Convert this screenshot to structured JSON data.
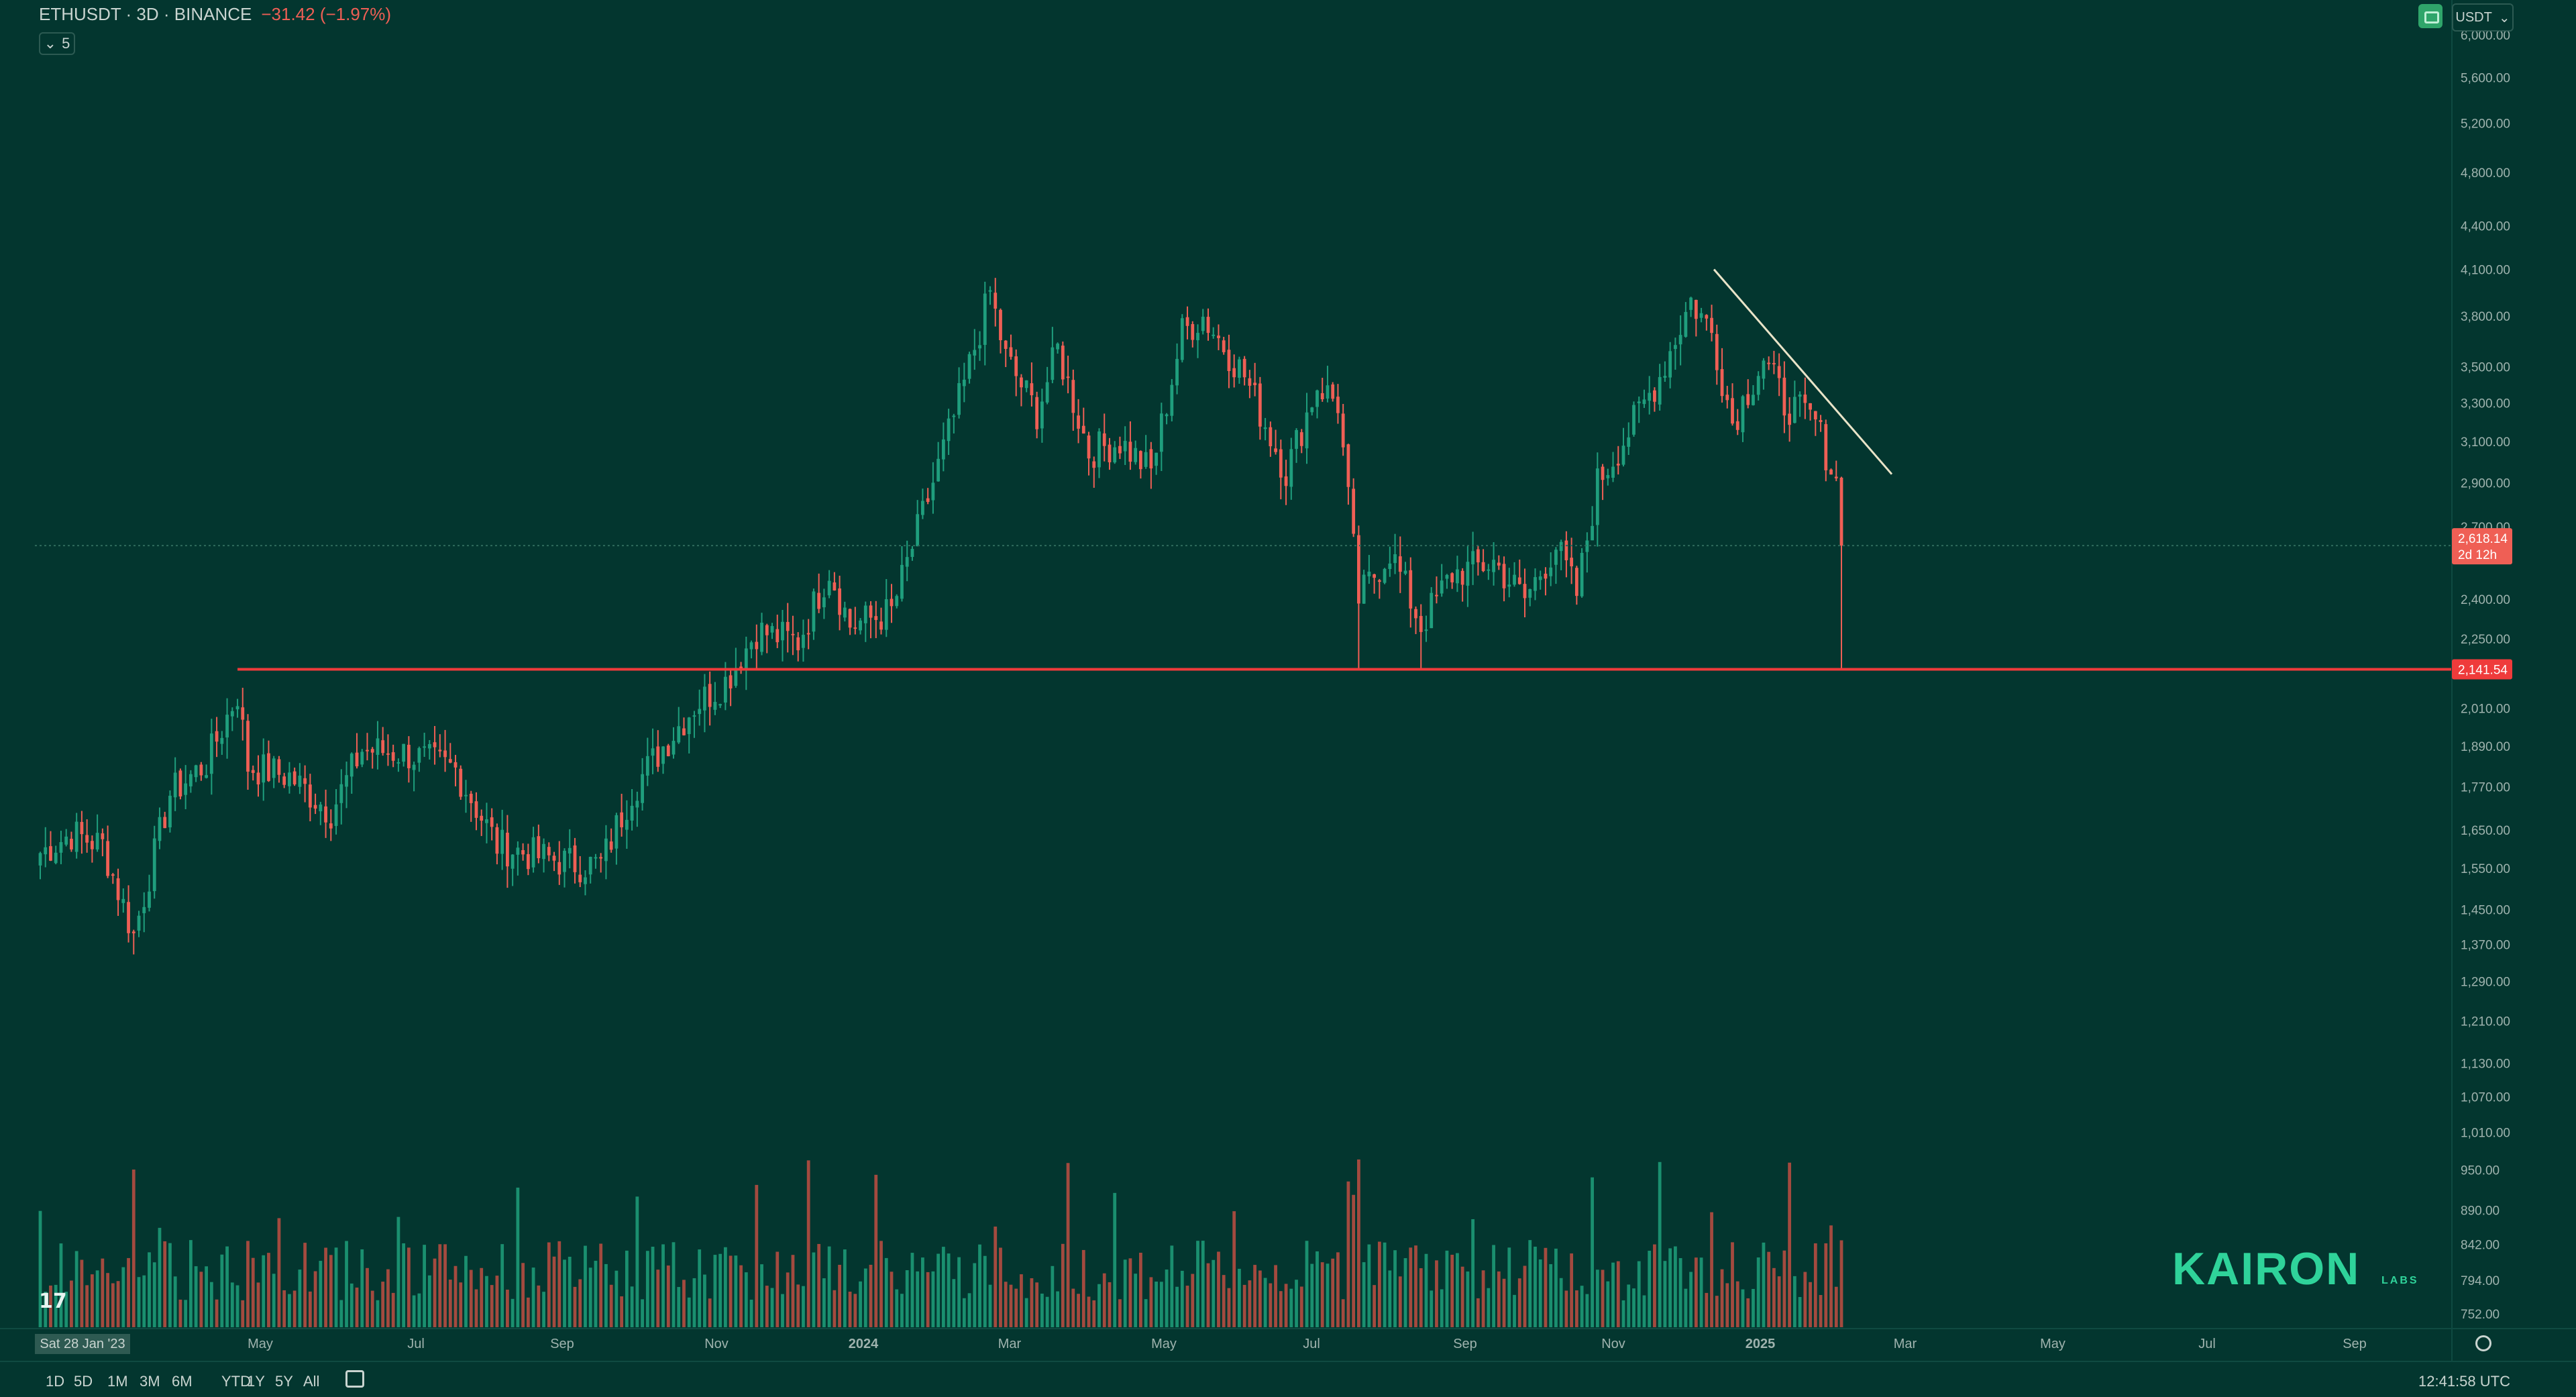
{
  "header": {
    "symbol_line": "ETHUSDT · 3D · BINANCE",
    "change": "−31.42 (−1.97%)",
    "indicator_count": "5",
    "currency": "USDT"
  },
  "timeframes": [
    "1D",
    "5D",
    "1M",
    "3M",
    "6M",
    "YTD",
    "1Y",
    "5Y",
    "All"
  ],
  "clock": "12:41:58 UTC",
  "logo_text": "KAIRON",
  "logo_sub": "LABS",
  "tv_logo": "17",
  "colors": {
    "bg": "#03362f",
    "up": "#1f9e7d",
    "down": "#ef5f55",
    "support": "#ef3b3b",
    "trend": "#e9e4c8"
  },
  "chart_data": {
    "type": "candlestick",
    "symbol": "ETHUSDT",
    "interval": "3D",
    "exchange": "BINANCE",
    "x_start": "Sat 28 Jan '23",
    "x_ticks": [
      "May",
      "Jul",
      "Sep",
      "Nov",
      "2024",
      "Mar",
      "May",
      "Jul",
      "Sep",
      "Nov",
      "2025",
      "Mar",
      "May",
      "Jul",
      "Sep"
    ],
    "y_ticks": [
      6000,
      5600,
      5200,
      4800,
      4400,
      4100,
      3800,
      3500,
      3300,
      3100,
      2900,
      2700,
      2400,
      2250,
      2010,
      1890,
      1770,
      1650,
      1550,
      1450,
      1370,
      1290,
      1210,
      1130,
      1070,
      1010,
      950,
      890,
      842,
      794,
      752
    ],
    "last_price": "2,618.14",
    "countdown": "2d 12h",
    "support_level": "2,141.54",
    "anchors": [
      {
        "i": 0,
        "p": 1590
      },
      {
        "i": 6,
        "p": 1640
      },
      {
        "i": 12,
        "p": 1610
      },
      {
        "i": 18,
        "p": 1390
      },
      {
        "i": 25,
        "p": 1750
      },
      {
        "i": 32,
        "p": 1840
      },
      {
        "i": 38,
        "p": 2060
      },
      {
        "i": 40,
        "p": 1830
      },
      {
        "i": 48,
        "p": 1800
      },
      {
        "i": 56,
        "p": 1700
      },
      {
        "i": 62,
        "p": 1880
      },
      {
        "i": 70,
        "p": 1870
      },
      {
        "i": 80,
        "p": 1820
      },
      {
        "i": 88,
        "p": 1610
      },
      {
        "i": 96,
        "p": 1580
      },
      {
        "i": 104,
        "p": 1560
      },
      {
        "i": 108,
        "p": 1560
      },
      {
        "i": 114,
        "p": 1760
      },
      {
        "i": 120,
        "p": 1890
      },
      {
        "i": 126,
        "p": 2020
      },
      {
        "i": 132,
        "p": 2100
      },
      {
        "i": 138,
        "p": 2280
      },
      {
        "i": 146,
        "p": 2240
      },
      {
        "i": 152,
        "p": 2520
      },
      {
        "i": 156,
        "p": 2300
      },
      {
        "i": 164,
        "p": 2350
      },
      {
        "i": 172,
        "p": 2900
      },
      {
        "i": 178,
        "p": 3400
      },
      {
        "i": 183,
        "p": 3950
      },
      {
        "i": 186,
        "p": 3550
      },
      {
        "i": 192,
        "p": 3250
      },
      {
        "i": 196,
        "p": 3600
      },
      {
        "i": 202,
        "p": 3050
      },
      {
        "i": 208,
        "p": 3100
      },
      {
        "i": 214,
        "p": 2950
      },
      {
        "i": 220,
        "p": 3700
      },
      {
        "i": 224,
        "p": 3800
      },
      {
        "i": 232,
        "p": 3450
      },
      {
        "i": 240,
        "p": 2950
      },
      {
        "i": 246,
        "p": 3400
      },
      {
        "i": 250,
        "p": 3300
      },
      {
        "i": 254,
        "p": 2400
      },
      {
        "i": 260,
        "p": 2600
      },
      {
        "i": 266,
        "p": 2300
      },
      {
        "i": 272,
        "p": 2500
      },
      {
        "i": 280,
        "p": 2550
      },
      {
        "i": 286,
        "p": 2400
      },
      {
        "i": 292,
        "p": 2620
      },
      {
        "i": 296,
        "p": 2420
      },
      {
        "i": 300,
        "p": 2900
      },
      {
        "i": 306,
        "p": 3150
      },
      {
        "i": 312,
        "p": 3450
      },
      {
        "i": 318,
        "p": 3900
      },
      {
        "i": 322,
        "p": 3700
      },
      {
        "i": 326,
        "p": 3200
      },
      {
        "i": 332,
        "p": 3550
      },
      {
        "i": 336,
        "p": 3300
      },
      {
        "i": 342,
        "p": 3200
      },
      {
        "i": 346,
        "p": 2900
      },
      {
        "i": 347,
        "p": 2618
      }
    ]
  }
}
